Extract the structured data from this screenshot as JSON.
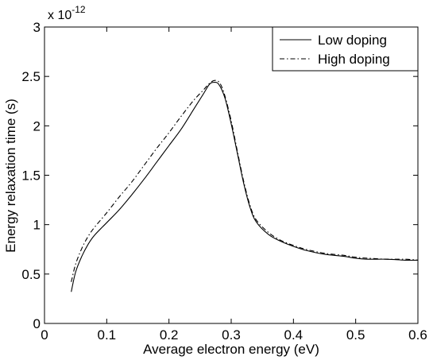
{
  "chart_data": {
    "type": "line",
    "title": "",
    "xlabel": "Average electron energy (eV)",
    "ylabel": "Energy relaxation time (s)",
    "y_multiplier_base": "x 10",
    "y_multiplier_exp": "-12",
    "xlim": [
      0,
      0.6
    ],
    "ylim": [
      0,
      3
    ],
    "xticks": [
      0,
      0.1,
      0.2,
      0.3,
      0.4,
      0.5,
      0.6
    ],
    "xtick_labels": [
      "0",
      "0.1",
      "0.2",
      "0.3",
      "0.4",
      "0.5",
      "0.6"
    ],
    "yticks": [
      0,
      0.5,
      1,
      1.5,
      2,
      2.5,
      3
    ],
    "ytick_labels": [
      "0",
      "0.5",
      "1",
      "1.5",
      "2",
      "2.5",
      "3"
    ],
    "grid": false,
    "legend_position": "top-right",
    "series": [
      {
        "name": "Low doping",
        "style": "solid",
        "color": "#000000",
        "x": [
          0.043,
          0.05,
          0.06,
          0.07,
          0.08,
          0.1,
          0.12,
          0.14,
          0.16,
          0.18,
          0.2,
          0.22,
          0.24,
          0.255,
          0.265,
          0.272,
          0.28,
          0.29,
          0.3,
          0.31,
          0.32,
          0.33,
          0.34,
          0.36,
          0.38,
          0.4,
          0.42,
          0.45,
          0.48,
          0.5,
          0.52,
          0.55,
          0.58,
          0.6
        ],
        "y": [
          0.32,
          0.52,
          0.68,
          0.8,
          0.89,
          1.02,
          1.15,
          1.3,
          1.46,
          1.63,
          1.8,
          1.97,
          2.17,
          2.32,
          2.42,
          2.44,
          2.42,
          2.28,
          2.02,
          1.72,
          1.42,
          1.18,
          1.03,
          0.9,
          0.83,
          0.78,
          0.74,
          0.7,
          0.68,
          0.66,
          0.65,
          0.65,
          0.64,
          0.64
        ]
      },
      {
        "name": "High doping",
        "style": "dashdot",
        "color": "#000000",
        "x": [
          0.043,
          0.05,
          0.06,
          0.07,
          0.08,
          0.1,
          0.12,
          0.14,
          0.16,
          0.18,
          0.2,
          0.22,
          0.24,
          0.255,
          0.265,
          0.274,
          0.282,
          0.29,
          0.3,
          0.31,
          0.32,
          0.33,
          0.34,
          0.36,
          0.38,
          0.4,
          0.42,
          0.45,
          0.48,
          0.5,
          0.52,
          0.55,
          0.58,
          0.6
        ],
        "y": [
          0.42,
          0.6,
          0.76,
          0.88,
          0.97,
          1.12,
          1.28,
          1.43,
          1.6,
          1.77,
          1.93,
          2.1,
          2.26,
          2.36,
          2.43,
          2.46,
          2.43,
          2.3,
          2.05,
          1.74,
          1.44,
          1.2,
          1.05,
          0.92,
          0.84,
          0.79,
          0.75,
          0.71,
          0.69,
          0.67,
          0.66,
          0.65,
          0.65,
          0.64
        ]
      }
    ]
  }
}
